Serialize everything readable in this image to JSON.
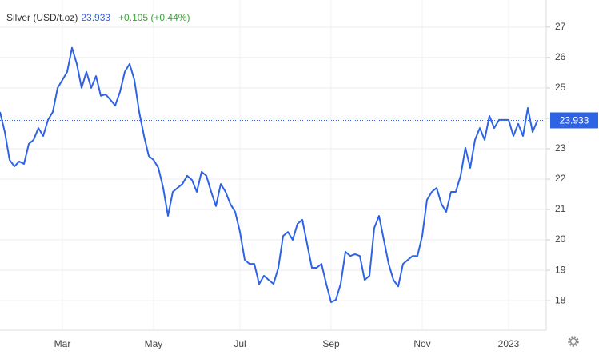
{
  "chart_data": {
    "type": "line",
    "title": "Silver (USD/t.oz)",
    "last_price": 23.933,
    "change": "+0.105 (+0.44%)",
    "color": "#2f63e6",
    "ylim": [
      17.03,
      27.89
    ],
    "yticks": [
      18,
      19,
      20,
      21,
      22,
      23,
      24,
      25,
      26,
      27
    ],
    "grid": true,
    "categories": [
      null,
      null,
      null,
      null,
      null,
      null,
      null,
      null,
      null,
      null,
      null,
      null,
      null,
      "Mar",
      null,
      null,
      null,
      null,
      null,
      null,
      null,
      null,
      null,
      null,
      null,
      null,
      null,
      null,
      null,
      null,
      null,
      null,
      "May",
      null,
      null,
      null,
      null,
      null,
      null,
      null,
      null,
      null,
      null,
      null,
      null,
      null,
      null,
      null,
      null,
      null,
      "Jul",
      null,
      null,
      null,
      null,
      null,
      null,
      null,
      null,
      null,
      null,
      null,
      null,
      null,
      null,
      null,
      null,
      null,
      null,
      "Sep",
      null,
      null,
      null,
      null,
      null,
      null,
      null,
      null,
      null,
      null,
      null,
      null,
      null,
      null,
      null,
      null,
      null,
      null,
      "Nov",
      null,
      null,
      null,
      null,
      null,
      null,
      null,
      null,
      null,
      null,
      null,
      null,
      null,
      null,
      null,
      null,
      null,
      "2023",
      null,
      null,
      null,
      null,
      null,
      null
    ],
    "values": [
      24.21,
      23.55,
      22.63,
      22.42,
      22.58,
      22.5,
      23.16,
      23.29,
      23.68,
      23.42,
      23.95,
      24.21,
      25.0,
      25.26,
      25.53,
      26.32,
      25.79,
      25.0,
      25.53,
      25.0,
      25.39,
      24.74,
      24.79,
      24.61,
      24.42,
      24.87,
      25.53,
      25.79,
      25.26,
      24.21,
      23.42,
      22.76,
      22.63,
      22.37,
      21.71,
      20.79,
      21.58,
      21.71,
      21.84,
      22.11,
      21.97,
      21.58,
      22.24,
      22.11,
      21.58,
      21.11,
      21.84,
      21.58,
      21.18,
      20.92,
      20.26,
      19.34,
      19.21,
      19.21,
      18.55,
      18.82,
      18.68,
      18.55,
      19.08,
      20.13,
      20.26,
      20.0,
      20.53,
      20.66,
      19.87,
      19.08,
      19.08,
      19.21,
      18.55,
      17.95,
      18.03,
      18.55,
      19.61,
      19.47,
      19.53,
      19.47,
      18.68,
      18.82,
      20.39,
      20.79,
      20.0,
      19.21,
      18.68,
      18.47,
      19.21,
      19.34,
      19.47,
      19.47,
      20.13,
      21.32,
      21.58,
      21.71,
      21.18,
      20.92,
      21.58,
      21.58,
      22.11,
      23.03,
      22.37,
      23.29,
      23.68,
      23.29,
      24.08,
      23.68,
      23.95,
      23.95,
      23.95,
      23.42,
      23.82,
      23.42,
      24.34,
      23.55,
      23.93
    ]
  }
}
